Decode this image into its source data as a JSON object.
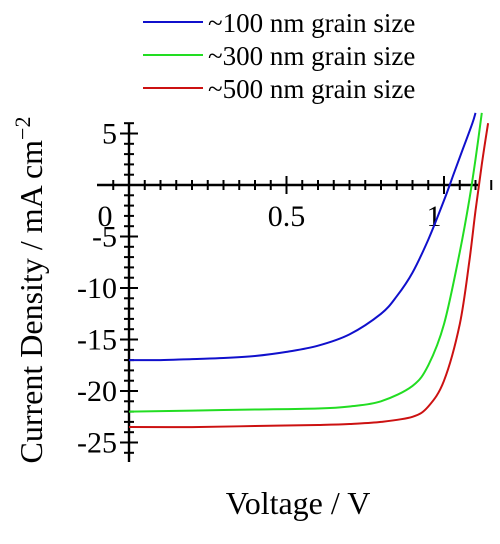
{
  "chart_data": {
    "type": "line",
    "title": "",
    "xlabel": "Voltage / V",
    "ylabel": "Current Density / mA cm",
    "ylabel_exponent": "−2",
    "xlim": [
      -0.05,
      1.15
    ],
    "ylim": [
      -26,
      7
    ],
    "x_ticks": [
      0,
      0.5,
      1
    ],
    "x_tick_labels": [
      "0",
      "0.5",
      "1"
    ],
    "y_ticks": [
      5,
      0,
      -5,
      -10,
      -15,
      -20,
      -25
    ],
    "y_tick_labels": [
      "5",
      "0",
      "-5",
      "-10",
      "-15",
      "-20",
      "-25"
    ],
    "grid": false,
    "legend_position": "top-right",
    "series": [
      {
        "name": "~100 nm grain size",
        "color": "#1010cc",
        "x": [
          0,
          0.1,
          0.2,
          0.3,
          0.4,
          0.5,
          0.6,
          0.7,
          0.8,
          0.85,
          0.9,
          0.95,
          1.0,
          1.03,
          1.06,
          1.09,
          1.1
        ],
        "y": [
          -17.0,
          -17.0,
          -16.9,
          -16.8,
          -16.6,
          -16.2,
          -15.6,
          -14.5,
          -12.5,
          -10.8,
          -8.5,
          -5.3,
          -1.5,
          1.0,
          3.5,
          6.0,
          7.0
        ]
      },
      {
        "name": "~300 nm grain size",
        "color": "#22dd22",
        "x": [
          0,
          0.2,
          0.4,
          0.6,
          0.7,
          0.8,
          0.9,
          0.95,
          1.0,
          1.05,
          1.08,
          1.1,
          1.12
        ],
        "y": [
          -22.0,
          -21.9,
          -21.8,
          -21.7,
          -21.5,
          -21.0,
          -19.5,
          -17.5,
          -13.5,
          -6.5,
          -1.5,
          2.5,
          7.0
        ]
      },
      {
        "name": "~500 nm grain size",
        "color": "#cc1111",
        "x": [
          0,
          0.2,
          0.4,
          0.6,
          0.7,
          0.8,
          0.9,
          0.95,
          1.0,
          1.05,
          1.08,
          1.1,
          1.12,
          1.14
        ],
        "y": [
          -23.5,
          -23.5,
          -23.4,
          -23.3,
          -23.2,
          -23.0,
          -22.5,
          -21.5,
          -19.0,
          -13.5,
          -7.5,
          -2.5,
          2.0,
          6.0
        ]
      }
    ]
  }
}
